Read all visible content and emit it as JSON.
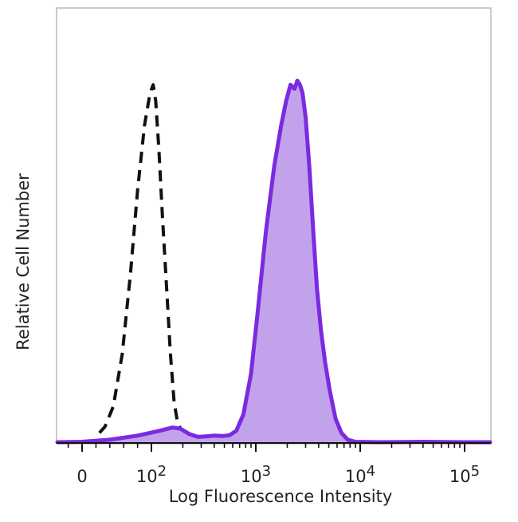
{
  "chart_data": {
    "type": "area",
    "title": "",
    "xlabel": "Log Fluorescence Intensity",
    "ylabel": "Relative Cell Number",
    "x_scale": "biexponential (linear near 0, log above)",
    "xlim": [
      0,
      250000
    ],
    "ylim": [
      0,
      100
    ],
    "grid": false,
    "legend": "none",
    "x_ticks": [
      {
        "value": 0,
        "base": "0",
        "exp": ""
      },
      {
        "value": 100,
        "base": "10",
        "exp": "2"
      },
      {
        "value": 1000,
        "base": "10",
        "exp": "3"
      },
      {
        "value": 10000,
        "base": "10",
        "exp": "4"
      },
      {
        "value": 100000,
        "base": "10",
        "exp": "5"
      }
    ],
    "series": [
      {
        "style": "dashed-black-line",
        "color": "#111111",
        "points": [
          [
            25,
            2.5
          ],
          [
            33,
            4
          ],
          [
            45,
            9
          ],
          [
            58,
            22
          ],
          [
            70,
            42
          ],
          [
            80,
            62
          ],
          [
            90,
            78
          ],
          [
            98,
            86
          ],
          [
            104,
            88
          ],
          [
            110,
            84
          ],
          [
            118,
            72
          ],
          [
            128,
            55
          ],
          [
            140,
            38
          ],
          [
            152,
            22
          ],
          [
            165,
            10
          ],
          [
            178,
            5
          ],
          [
            200,
            2.5
          ],
          [
            230,
            0.3
          ]
        ]
      },
      {
        "style": "filled-purple-area",
        "color": "#7a2be0",
        "fill": "#c3a2ec",
        "points": [
          [
            -40,
            0.2
          ],
          [
            0,
            0.3
          ],
          [
            40,
            0.8
          ],
          [
            80,
            1.8
          ],
          [
            120,
            3
          ],
          [
            160,
            3.8
          ],
          [
            190,
            3.5
          ],
          [
            230,
            2.2
          ],
          [
            280,
            1.5
          ],
          [
            330,
            1.6
          ],
          [
            400,
            1.8
          ],
          [
            480,
            1.7
          ],
          [
            560,
            1.9
          ],
          [
            650,
            3
          ],
          [
            760,
            7
          ],
          [
            900,
            17
          ],
          [
            1050,
            33
          ],
          [
            1250,
            52
          ],
          [
            1500,
            68
          ],
          [
            1750,
            78
          ],
          [
            1950,
            84
          ],
          [
            2150,
            88
          ],
          [
            2350,
            87
          ],
          [
            2500,
            89
          ],
          [
            2650,
            88
          ],
          [
            2800,
            86
          ],
          [
            3000,
            80
          ],
          [
            3250,
            68
          ],
          [
            3550,
            52
          ],
          [
            3850,
            38
          ],
          [
            4200,
            28
          ],
          [
            4600,
            20
          ],
          [
            5100,
            13
          ],
          [
            5800,
            6
          ],
          [
            6600,
            2.5
          ],
          [
            7600,
            0.8
          ],
          [
            9000,
            0.3
          ],
          [
            15000,
            0.2
          ],
          [
            40000,
            0.3
          ],
          [
            100000,
            0.2
          ],
          [
            250000,
            0.2
          ]
        ]
      }
    ]
  }
}
